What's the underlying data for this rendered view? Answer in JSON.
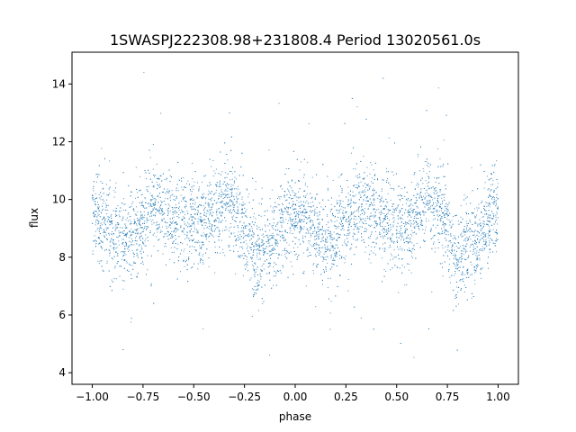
{
  "chart_data": {
    "type": "scatter",
    "title": "1SWASPJ222308.98+231808.4 Period 13020561.0s",
    "xlabel": "phase",
    "ylabel": "flux",
    "xlim": [
      -1.1,
      1.1
    ],
    "ylim": [
      3.6,
      15.1
    ],
    "xticks": [
      {
        "value": -1.0,
        "label": "−1.00"
      },
      {
        "value": -0.75,
        "label": "−0.75"
      },
      {
        "value": -0.5,
        "label": "−0.50"
      },
      {
        "value": -0.25,
        "label": "−0.25"
      },
      {
        "value": 0.0,
        "label": "0.00"
      },
      {
        "value": 0.25,
        "label": "0.25"
      },
      {
        "value": 0.5,
        "label": "0.50"
      },
      {
        "value": 0.75,
        "label": "0.75"
      },
      {
        "value": 1.0,
        "label": "1.00"
      }
    ],
    "yticks": [
      {
        "value": 4,
        "label": "4"
      },
      {
        "value": 6,
        "label": "6"
      },
      {
        "value": 8,
        "label": "8"
      },
      {
        "value": 10,
        "label": "10"
      },
      {
        "value": 12,
        "label": "12"
      },
      {
        "value": 14,
        "label": "14"
      }
    ],
    "grid": false,
    "marker_color": "#1f77b4",
    "series": [
      {
        "x_range": [
          -1.0,
          1.0
        ],
        "trend": [
          {
            "x": -1.0,
            "y": 9.6
          },
          {
            "x": -0.95,
            "y": 9.3
          },
          {
            "x": -0.9,
            "y": 8.8
          },
          {
            "x": -0.85,
            "y": 8.5
          },
          {
            "x": -0.8,
            "y": 8.7
          },
          {
            "x": -0.75,
            "y": 9.2
          },
          {
            "x": -0.7,
            "y": 9.8
          },
          {
            "x": -0.65,
            "y": 9.7
          },
          {
            "x": -0.6,
            "y": 9.4
          },
          {
            "x": -0.55,
            "y": 9.3
          },
          {
            "x": -0.5,
            "y": 9.2
          },
          {
            "x": -0.45,
            "y": 9.0
          },
          {
            "x": -0.4,
            "y": 9.6
          },
          {
            "x": -0.35,
            "y": 10.0
          },
          {
            "x": -0.3,
            "y": 9.7
          },
          {
            "x": -0.25,
            "y": 9.0
          },
          {
            "x": -0.2,
            "y": 8.1
          },
          {
            "x": -0.15,
            "y": 8.2
          },
          {
            "x": -0.1,
            "y": 8.5
          },
          {
            "x": -0.05,
            "y": 9.3
          },
          {
            "x": 0.0,
            "y": 9.6
          },
          {
            "x": 0.05,
            "y": 9.3
          },
          {
            "x": 0.1,
            "y": 8.8
          },
          {
            "x": 0.15,
            "y": 8.5
          },
          {
            "x": 0.2,
            "y": 8.7
          },
          {
            "x": 0.25,
            "y": 9.2
          },
          {
            "x": 0.3,
            "y": 9.8
          },
          {
            "x": 0.35,
            "y": 9.7
          },
          {
            "x": 0.4,
            "y": 9.4
          },
          {
            "x": 0.45,
            "y": 9.3
          },
          {
            "x": 0.5,
            "y": 9.2
          },
          {
            "x": 0.55,
            "y": 9.0
          },
          {
            "x": 0.6,
            "y": 9.6
          },
          {
            "x": 0.65,
            "y": 10.0
          },
          {
            "x": 0.7,
            "y": 9.7
          },
          {
            "x": 0.75,
            "y": 9.0
          },
          {
            "x": 0.8,
            "y": 8.1
          },
          {
            "x": 0.85,
            "y": 8.2
          },
          {
            "x": 0.9,
            "y": 8.5
          },
          {
            "x": 0.95,
            "y": 9.3
          },
          {
            "x": 1.0,
            "y": 9.6
          }
        ]
      }
    ]
  }
}
